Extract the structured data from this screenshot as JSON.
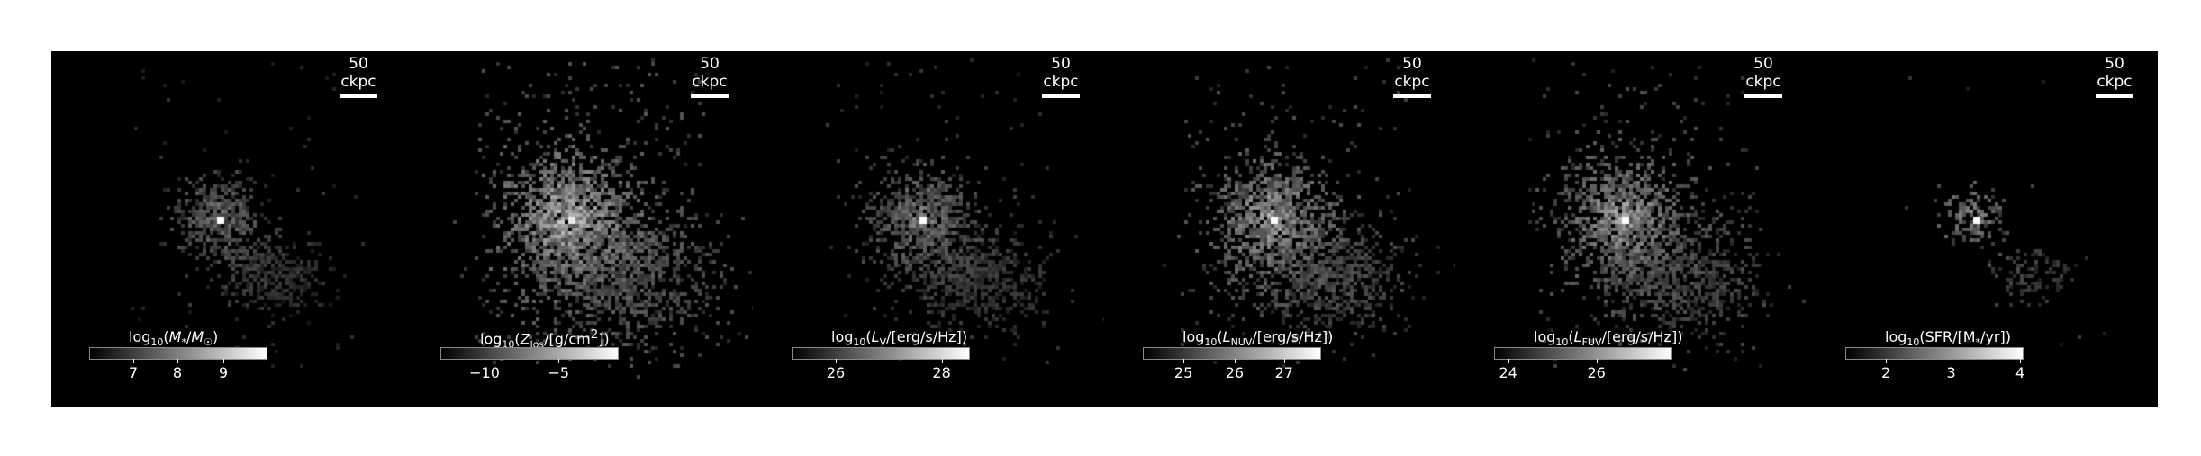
{
  "scale_label": "50 ckpc",
  "panels": [
    {
      "label_html": "log<sub>10</sub>(<i>M</i><sub>*</sub>/<i>M</i><sub>☉</sub>)",
      "ticks": [
        "7",
        "8",
        "9"
      ],
      "tick_pos": [
        0.25,
        0.5,
        0.76
      ],
      "style": "mass"
    },
    {
      "label_html": "log<sub>10</sub>(<i>Z</i><sub>los</sub>/[g/cm<sup>2</sup>])",
      "ticks": [
        "−10",
        "−5"
      ],
      "tick_pos": [
        0.25,
        0.67
      ],
      "style": "metal"
    },
    {
      "label_html": "log<sub>10</sub>(<i>L</i><sub>V</sub>/[erg/s/Hz])",
      "ticks": [
        "26",
        "28"
      ],
      "tick_pos": [
        0.25,
        0.85
      ],
      "style": "lum"
    },
    {
      "label_html": "log<sub>10</sub>(<i>L</i><sub>NUV</sub>/[erg/s/Hz])",
      "ticks": [
        "25",
        "26",
        "27"
      ],
      "tick_pos": [
        0.23,
        0.52,
        0.8
      ],
      "style": "nuv"
    },
    {
      "label_html": "log<sub>10</sub>(<i>L</i><sub>FUV</sub>/[erg/s/Hz])",
      "ticks": [
        "24",
        "26"
      ],
      "tick_pos": [
        0.08,
        0.58
      ],
      "style": "fuv"
    },
    {
      "label_html": "log<sub>10</sub>(SFR/[M<sub>*</sub>/yr])",
      "ticks": [
        "2",
        "3",
        "4"
      ],
      "tick_pos": [
        0.23,
        0.6,
        0.99
      ],
      "style": "sfr"
    }
  ]
}
